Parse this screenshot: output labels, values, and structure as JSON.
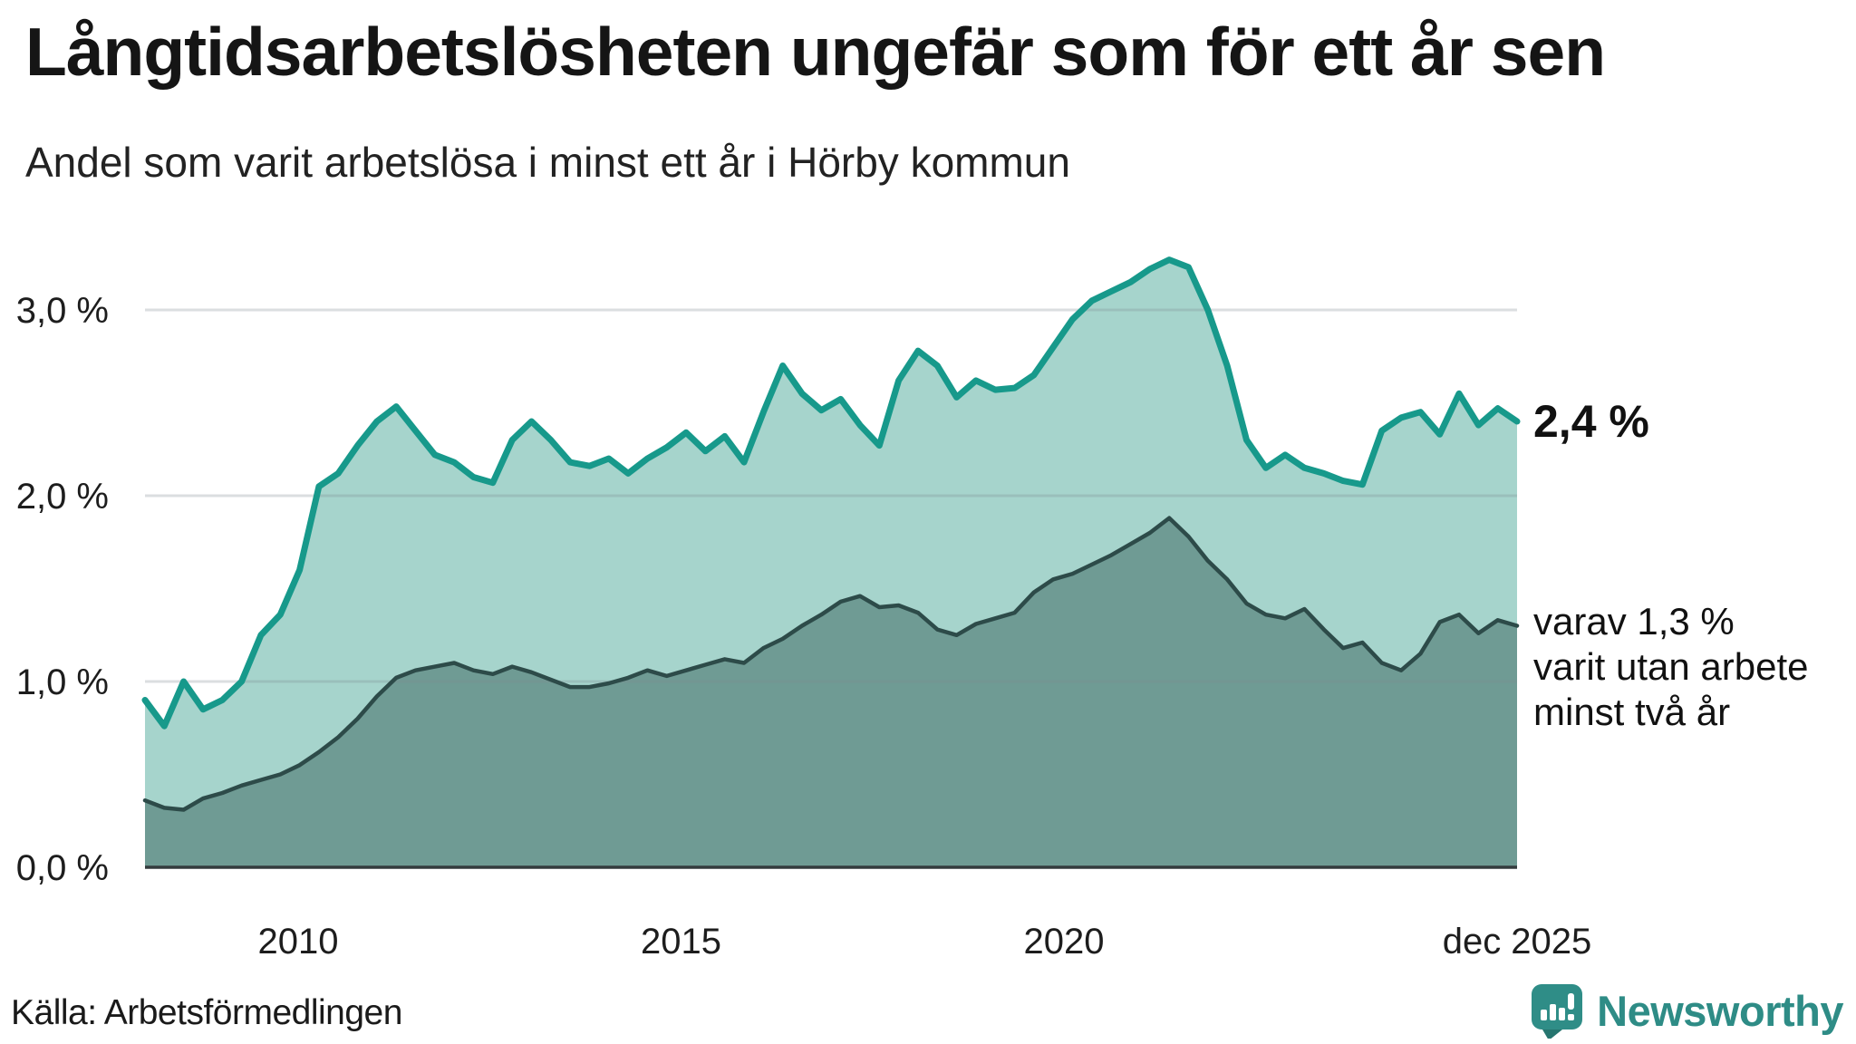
{
  "page": {
    "title": "Långtidsarbetslösheten ungefär som för ett år sen",
    "subtitle": "Andel som varit arbetslösa i minst ett år i Hörby kommun"
  },
  "annotations": {
    "latest_total": "2,4 %",
    "secondary_lines": [
      "varav 1,3 %",
      "varit utan arbete",
      "minst två år"
    ]
  },
  "source": {
    "label": "Källa: Arbetsförmedlingen"
  },
  "brand": {
    "name": "Newsworthy",
    "icon": "speech-bubble-bar-chart-icon",
    "color": "#2e8c86"
  },
  "colors": {
    "total_line": "#17998b",
    "total_fill": "#a6d4cc",
    "two_year_line": "#2d4b49",
    "two_year_fill": "#6f9b94",
    "gridline": "rgba(125,138,142,0.28)",
    "baseline": "#333b3d",
    "text": "#1a1a1a"
  },
  "chart_data": {
    "type": "area",
    "title": "Långtidsarbetslösheten ungefär som för ett år sen",
    "subtitle": "Andel som varit arbetslösa i minst ett år i Hörby kommun",
    "unit": "%",
    "interval": "quarterly",
    "start": "2008-Q1",
    "end": "2025-Q4",
    "ylim": [
      0,
      3.4
    ],
    "grid": true,
    "legend_position": "right-annotations",
    "y_ticks": [
      {
        "value": 3,
        "label": "3,0 %"
      },
      {
        "value": 2,
        "label": "2,0 %"
      },
      {
        "value": 1,
        "label": "1,0 %"
      },
      {
        "value": 0,
        "label": "0,0 %"
      }
    ],
    "x_ticks": [
      {
        "label": "2010",
        "month_index": 24
      },
      {
        "label": "2015",
        "month_index": 84
      },
      {
        "label": "2020",
        "month_index": 144
      },
      {
        "label": "dec 2025",
        "month_index": 215
      }
    ],
    "series": [
      {
        "name": "Arbetslösa minst ett år",
        "end_value": 2.4,
        "end_label": "2,4 %",
        "values": [
          0.9,
          0.76,
          1.0,
          0.85,
          0.9,
          1.0,
          1.25,
          1.36,
          1.6,
          2.05,
          2.12,
          2.27,
          2.4,
          2.48,
          2.35,
          2.22,
          2.18,
          2.1,
          2.07,
          2.3,
          2.4,
          2.3,
          2.18,
          2.16,
          2.2,
          2.12,
          2.2,
          2.26,
          2.34,
          2.24,
          2.32,
          2.18,
          2.45,
          2.7,
          2.55,
          2.46,
          2.52,
          2.38,
          2.27,
          2.62,
          2.78,
          2.7,
          2.53,
          2.62,
          2.57,
          2.58,
          2.65,
          2.8,
          2.95,
          3.05,
          3.1,
          3.15,
          3.22,
          3.27,
          3.23,
          3.0,
          2.7,
          2.3,
          2.15,
          2.22,
          2.15,
          2.12,
          2.08,
          2.06,
          2.35,
          2.42,
          2.45,
          2.33,
          2.55,
          2.38,
          2.47,
          2.4
        ]
      },
      {
        "name": "varav utan arbete minst två år",
        "end_value": 1.3,
        "end_label": "varav 1,3 % varit utan arbete minst två år",
        "values": [
          0.36,
          0.32,
          0.31,
          0.37,
          0.4,
          0.44,
          0.47,
          0.5,
          0.55,
          0.62,
          0.7,
          0.8,
          0.92,
          1.02,
          1.06,
          1.08,
          1.1,
          1.06,
          1.04,
          1.08,
          1.05,
          1.01,
          0.97,
          0.97,
          0.99,
          1.02,
          1.06,
          1.03,
          1.06,
          1.09,
          1.12,
          1.1,
          1.18,
          1.23,
          1.3,
          1.36,
          1.43,
          1.46,
          1.4,
          1.41,
          1.37,
          1.28,
          1.25,
          1.31,
          1.34,
          1.37,
          1.48,
          1.55,
          1.58,
          1.63,
          1.68,
          1.74,
          1.8,
          1.88,
          1.78,
          1.65,
          1.55,
          1.42,
          1.36,
          1.34,
          1.39,
          1.28,
          1.18,
          1.21,
          1.1,
          1.06,
          1.15,
          1.32,
          1.36,
          1.26,
          1.33,
          1.3
        ]
      }
    ]
  }
}
